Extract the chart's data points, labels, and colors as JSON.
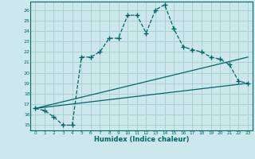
{
  "xlabel": "Humidex (Indice chaleur)",
  "bg_color": "#cce8ec",
  "grid_color": "#aacccc",
  "line_color": "#006666",
  "xlim": [
    -0.5,
    23.5
  ],
  "ylim": [
    14.5,
    26.8
  ],
  "xticks": [
    0,
    1,
    2,
    3,
    4,
    5,
    6,
    7,
    8,
    9,
    10,
    11,
    12,
    13,
    14,
    15,
    16,
    17,
    18,
    19,
    20,
    21,
    22,
    23
  ],
  "yticks": [
    15,
    16,
    17,
    18,
    19,
    20,
    21,
    22,
    23,
    24,
    25,
    26
  ],
  "line1_x": [
    0,
    1,
    2,
    3,
    4,
    5,
    6,
    7,
    8,
    9,
    10,
    11,
    12,
    13,
    14,
    15,
    16,
    17,
    18,
    19,
    20,
    21,
    22,
    23
  ],
  "line1_y": [
    16.6,
    16.4,
    15.8,
    15.0,
    15.0,
    21.5,
    21.5,
    22.0,
    23.3,
    23.3,
    25.5,
    25.5,
    23.8,
    26.0,
    26.5,
    24.2,
    22.5,
    22.2,
    22.0,
    21.5,
    21.3,
    20.8,
    19.2,
    19.0
  ],
  "line2_x": [
    0,
    23
  ],
  "line2_y": [
    16.6,
    19.0
  ],
  "line3_x": [
    0,
    23
  ],
  "line3_y": [
    16.6,
    21.5
  ]
}
